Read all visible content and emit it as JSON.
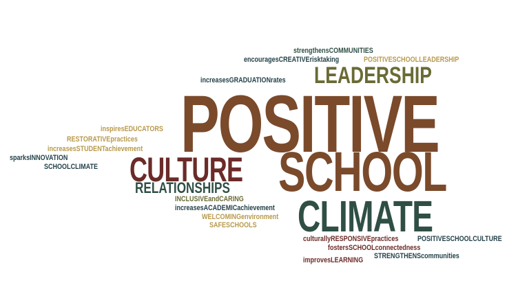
{
  "colors": {
    "brown": "#7a4a2b",
    "dark_red": "#6b2b28",
    "olive": "#6a6b35",
    "teal": "#2f4f45",
    "tan": "#b89a4c",
    "dark_blue": "#24424a"
  },
  "words": {
    "positive": "POSITIVE",
    "school": "SCHOOL",
    "climate": "CLIMATE",
    "culture": "CULTURE",
    "leadership": "LEADERSHIP",
    "relationships": "RELATIONSHIPS",
    "strengthens_communities": "strengthensCOMMUNITIES",
    "encourages_creative": "encouragesCREATIVErisktaking",
    "positive_school_leadership": "POSITIVESCHOOLLEADERSHIP",
    "increases_graduation": "increasesGRADUATIONrates",
    "inspires_educators": "inspiresEDUCATORS",
    "restorative": "RESTORATIVEpractices",
    "increases_student": "increasesSTUDENTachievement",
    "sparks_innovation": "sparksINNOVATION",
    "school_climate": "SCHOOLCLIMATE",
    "inclusive_caring": "INCLUSIVEandCARING",
    "increases_academic": "increasesACADEMICachievement",
    "welcoming": "WELCOMINGenvironment",
    "safe_schools": "SAFESCHOOLS",
    "culturally_responsive": "culturallyRESPONSIVEpractices",
    "positive_school_culture": "POSITIVESCHOOLCULTURE",
    "fosters_connectedness": "fostersSCHOOLconnectedness",
    "strengthens_communities_2": "STRENGTHENScommunities",
    "improves_learning": "improvesLEARNING"
  }
}
